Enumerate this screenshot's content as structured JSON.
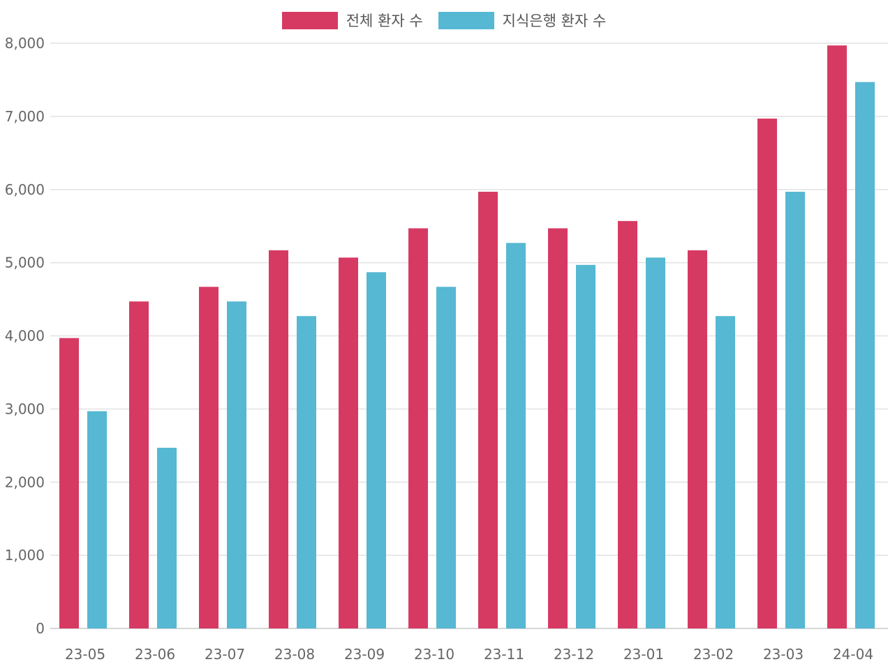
{
  "chart_data": {
    "type": "bar",
    "categories": [
      "23-05",
      "23-06",
      "23-07",
      "23-08",
      "23-09",
      "23-10",
      "23-11",
      "23-12",
      "23-01",
      "23-02",
      "23-03",
      "24-04"
    ],
    "series": [
      {
        "name": "전체 환자 수",
        "color": "#d63a63",
        "values": [
          3970,
          4470,
          4670,
          5170,
          5070,
          5470,
          5970,
          5470,
          5570,
          5170,
          6970,
          7970
        ]
      },
      {
        "name": "지식은행 환자 수",
        "color": "#56b8d2",
        "values": [
          2970,
          2470,
          4470,
          4270,
          4870,
          4670,
          5270,
          4970,
          5070,
          4270,
          5970,
          7470
        ]
      }
    ],
    "ylim": [
      0,
      8000
    ],
    "yticks": [
      0,
      1000,
      2000,
      3000,
      4000,
      5000,
      6000,
      7000,
      8000
    ],
    "ytick_labels": [
      "0",
      "1,000",
      "2,000",
      "3,000",
      "4,000",
      "5,000",
      "6,000",
      "7,000",
      "8,000"
    ],
    "grid": true,
    "legend_position": "top-center"
  }
}
